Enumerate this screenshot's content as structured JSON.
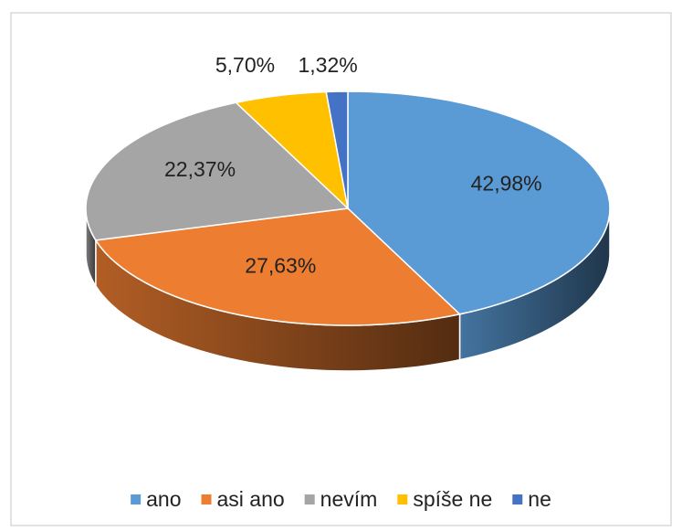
{
  "chart_data": {
    "type": "pie3d",
    "categories": [
      "ano",
      "asi ano",
      "nevím",
      "spíše ne",
      "ne"
    ],
    "values": [
      42.98,
      27.63,
      22.37,
      5.7,
      1.32
    ],
    "value_labels": [
      "42,98%",
      "27,63%",
      "22,37%",
      "5,70%",
      "1,32%"
    ],
    "colors": [
      "#5b9bd5",
      "#ed7d31",
      "#a5a5a5",
      "#ffc000",
      "#4472c4"
    ],
    "legend": "bottom"
  }
}
